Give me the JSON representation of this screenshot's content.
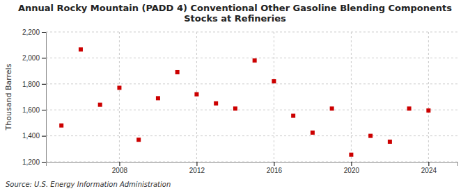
{
  "chart_data": {
    "type": "scatter",
    "title": "Annual Rocky Mountain (PADD 4) Conventional Other Gasoline Blending Components Stocks at Refineries",
    "y_label": "Thousand Barrels",
    "annotations": [
      "Source: U.S. Energy Information Administration"
    ],
    "x": [
      2005,
      2006,
      2007,
      2008,
      2009,
      2010,
      2011,
      2012,
      2013,
      2014,
      2015,
      2016,
      2017,
      2018,
      2019,
      2020,
      2021,
      2022,
      2023,
      2024
    ],
    "values": [
      1480,
      2065,
      1640,
      1770,
      1370,
      1690,
      1890,
      1720,
      1650,
      1610,
      1980,
      1820,
      1555,
      1425,
      1610,
      1255,
      1400,
      1355,
      1610,
      1595
    ],
    "color": "#cc0000",
    "marker": "square",
    "xlim": [
      2004.2,
      2025.5
    ],
    "xticks": [
      2008,
      2012,
      2016,
      2020,
      2024
    ],
    "ylim": [
      1200,
      2200
    ],
    "yticks": [
      {
        "value": 1200,
        "label": "1,200"
      },
      {
        "value": 1400,
        "label": "1,400"
      },
      {
        "value": 1600,
        "label": "1,600"
      },
      {
        "value": 1800,
        "label": "1,800"
      },
      {
        "value": 2000,
        "label": "2,000"
      },
      {
        "value": 2200,
        "label": "2,200"
      }
    ],
    "grid": true
  }
}
